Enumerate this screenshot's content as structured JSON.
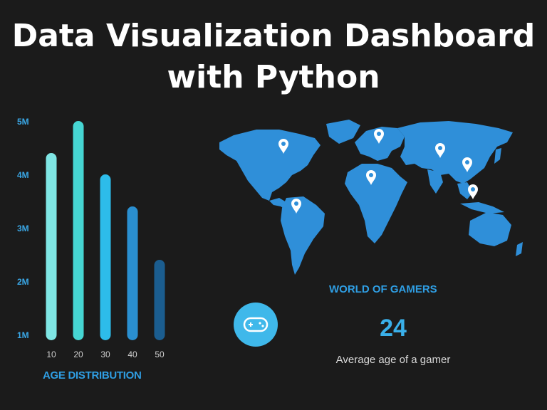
{
  "header": {
    "title_line1": "Data Visualization Dashboard",
    "title_line2": "with Python"
  },
  "chart_data": {
    "type": "bar",
    "title": "AGE DISTRIBUTION",
    "categories": [
      "10",
      "20",
      "30",
      "40",
      "50"
    ],
    "values": [
      4.4,
      5.0,
      4.0,
      3.4,
      2.4
    ],
    "ylabel": "",
    "xlabel": "AGE DISTRIBUTION",
    "ylim": [
      1,
      5
    ],
    "yticks": [
      "1M",
      "2M",
      "3M",
      "4M",
      "5M"
    ],
    "bar_colors": [
      "#7fe6e4",
      "#46d6d3",
      "#2dbcea",
      "#2a8fd0",
      "#1b5d8f"
    ],
    "grid": false
  },
  "map": {
    "land_color": "#2f8fd9",
    "pin_color": "#ffffff",
    "pins": [
      {
        "name": "north-america"
      },
      {
        "name": "south-america"
      },
      {
        "name": "europe"
      },
      {
        "name": "africa"
      },
      {
        "name": "asia-central"
      },
      {
        "name": "asia-east"
      },
      {
        "name": "southeast-asia"
      }
    ]
  },
  "stats": {
    "heading": "WORLD OF GAMERS",
    "icon": "gamepad-icon",
    "value": "24",
    "label": "Average age of a gamer"
  },
  "colors": {
    "accent": "#2f9ee3",
    "badge": "#3fb8ea",
    "background": "#1b1b1b"
  }
}
